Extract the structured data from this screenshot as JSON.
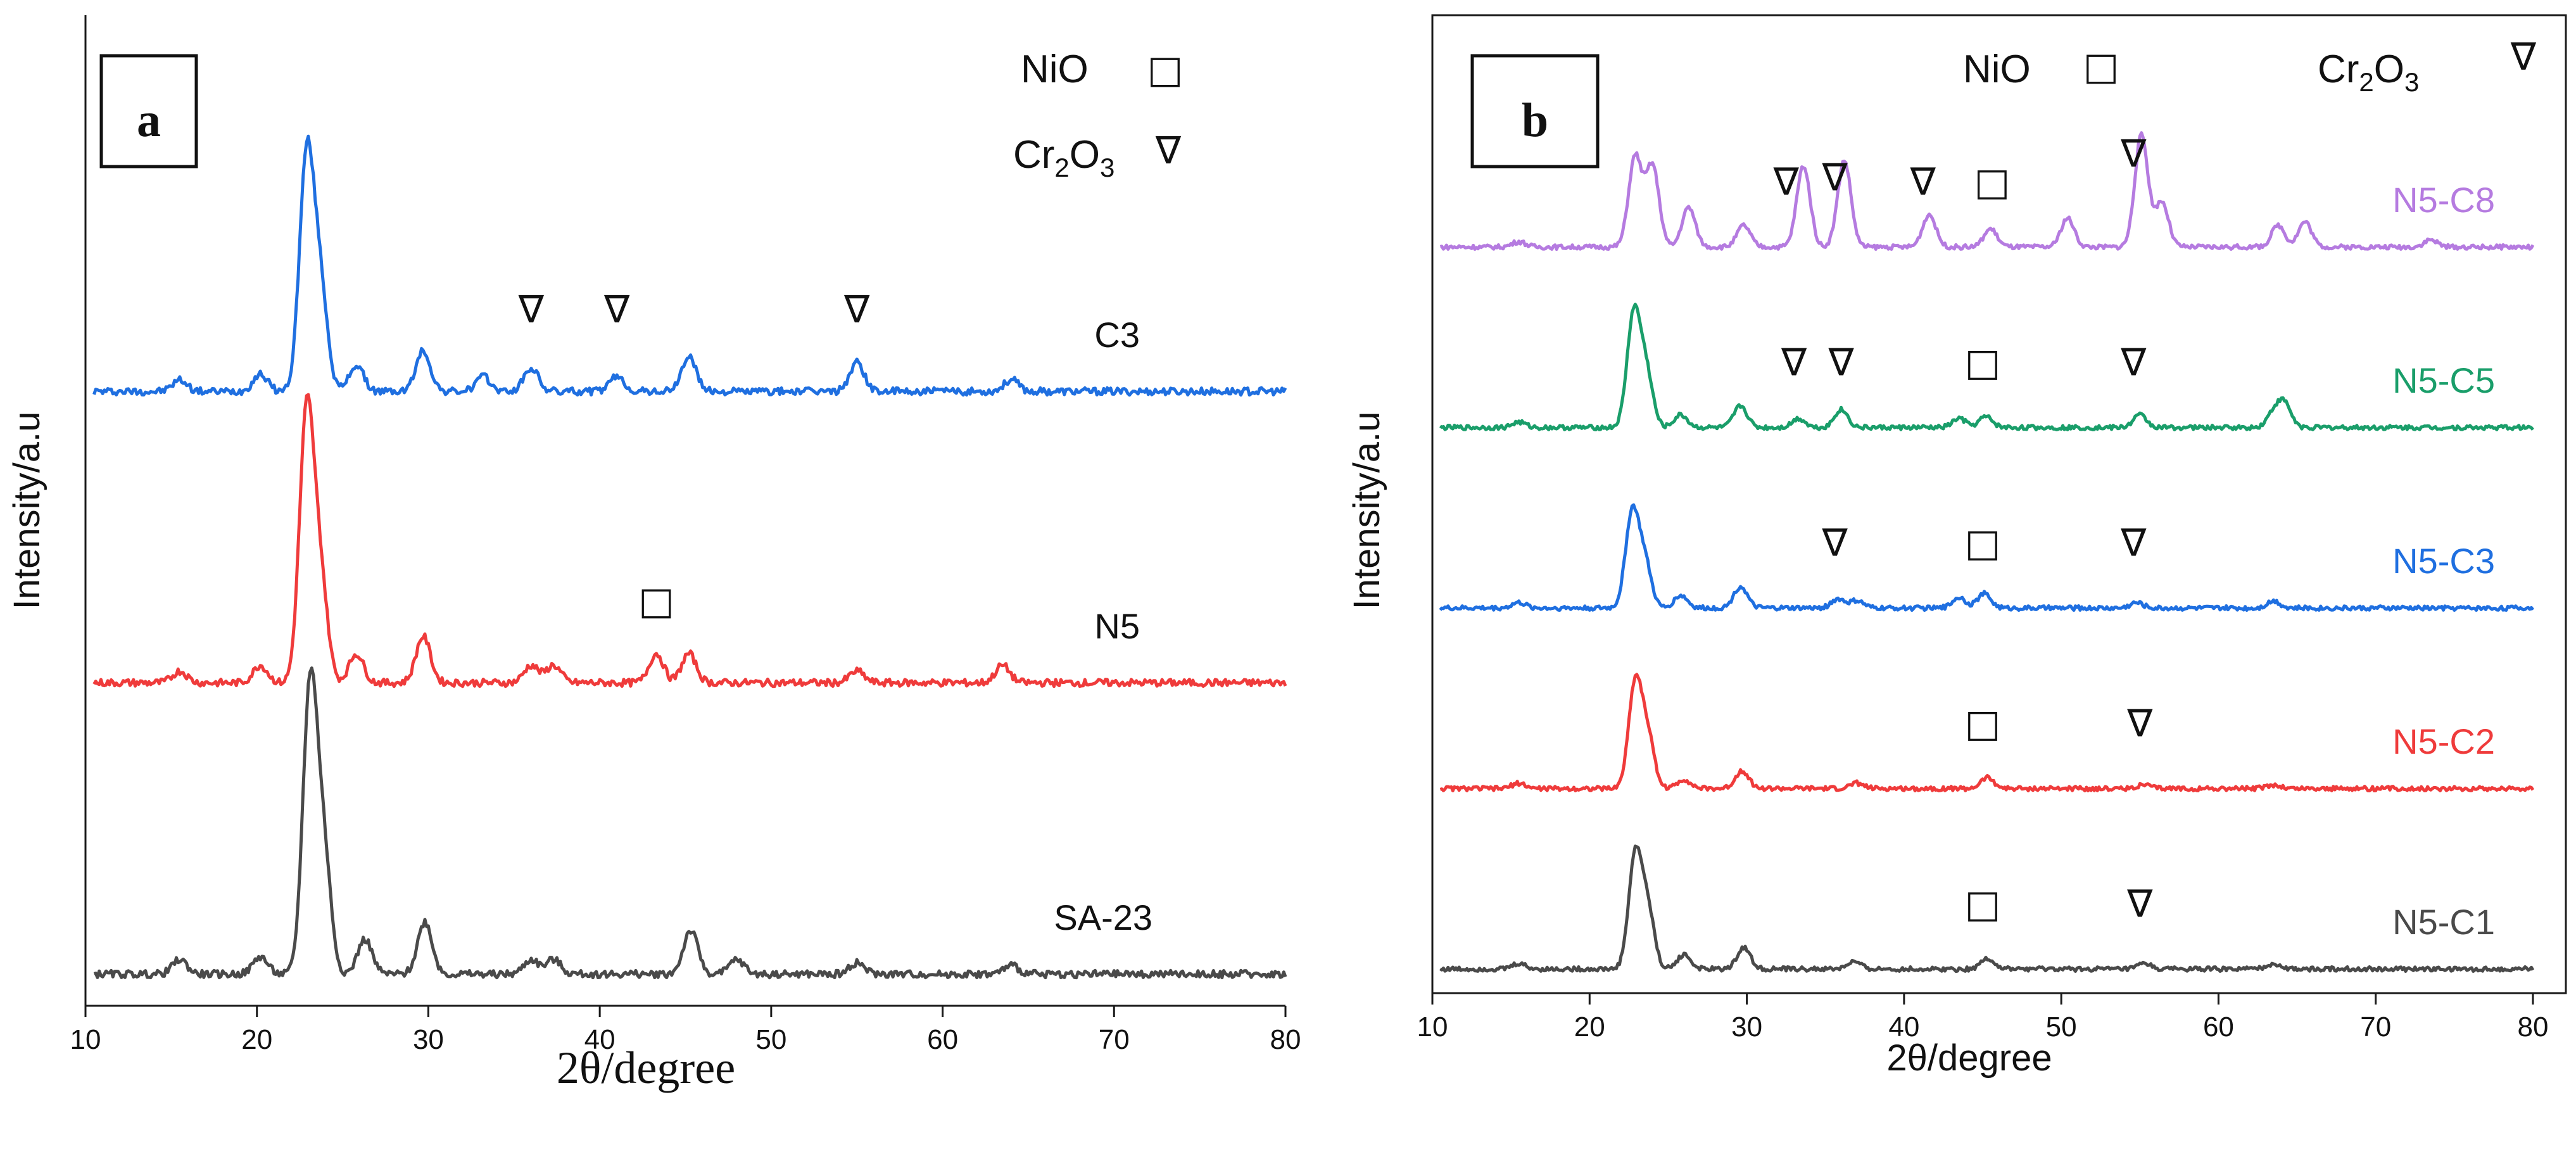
{
  "chart_data": [
    {
      "type": "line",
      "panel_label": "a",
      "xlabel": "2θ/degree",
      "ylabel": "Intensity/a.u",
      "xlim": [
        10,
        80
      ],
      "x_ticks": [
        "10",
        "20",
        "30",
        "40",
        "50",
        "60",
        "70",
        "80"
      ],
      "legend": [
        {
          "name": "NiO",
          "symbol": "□"
        },
        {
          "name": "Cr",
          "sub1": "2",
          "mid": "O",
          "sub2": "3",
          "symbol": "∇"
        }
      ],
      "series": [
        {
          "name": "C3",
          "color": "#1f6fe0",
          "offset": 2.0,
          "peaks": [
            [
              15.5,
              0.04
            ],
            [
              20.2,
              0.06
            ],
            [
              22.9,
              0.8
            ],
            [
              23.7,
              0.35
            ],
            [
              25.8,
              0.09
            ],
            [
              29.7,
              0.14
            ],
            [
              33.2,
              0.05
            ],
            [
              36.0,
              0.08
            ],
            [
              41.0,
              0.05
            ],
            [
              45.2,
              0.12
            ],
            [
              55.0,
              0.1
            ],
            [
              64.0,
              0.04
            ]
          ]
        },
        {
          "name": "N5",
          "color": "#ef3b3b",
          "offset": 1.0,
          "peaks": [
            [
              15.5,
              0.04
            ],
            [
              20.2,
              0.06
            ],
            [
              22.9,
              0.92
            ],
            [
              23.7,
              0.35
            ],
            [
              25.8,
              0.1
            ],
            [
              29.7,
              0.16
            ],
            [
              36.0,
              0.06
            ],
            [
              37.3,
              0.06
            ],
            [
              43.3,
              0.1
            ],
            [
              45.2,
              0.1
            ],
            [
              55.0,
              0.04
            ],
            [
              63.5,
              0.06
            ]
          ]
        },
        {
          "name": "SA-23",
          "color": "#4a4a4a",
          "offset": 0.0,
          "peaks": [
            [
              15.5,
              0.05
            ],
            [
              20.2,
              0.06
            ],
            [
              23.1,
              0.98
            ],
            [
              23.9,
              0.4
            ],
            [
              26.3,
              0.12
            ],
            [
              29.8,
              0.18
            ],
            [
              36.0,
              0.05
            ],
            [
              37.3,
              0.05
            ],
            [
              45.3,
              0.15
            ],
            [
              48.0,
              0.05
            ],
            [
              55.0,
              0.04
            ],
            [
              64.0,
              0.03
            ]
          ]
        }
      ],
      "markers": [
        {
          "series": "C3",
          "x": 36.0,
          "symbol": "∇"
        },
        {
          "series": "C3",
          "x": 41.0,
          "symbol": "∇"
        },
        {
          "series": "C3",
          "x": 55.0,
          "symbol": "∇"
        },
        {
          "series": "N5",
          "x": 43.3,
          "symbol": "□"
        }
      ]
    },
    {
      "type": "line",
      "panel_label": "b",
      "xlabel": "2θ/degree",
      "ylabel": "Intensity/a.u",
      "xlim": [
        10,
        80
      ],
      "x_ticks": [
        "10",
        "20",
        "30",
        "40",
        "50",
        "60",
        "70",
        "80"
      ],
      "legend": [
        {
          "name": "NiO",
          "symbol": "□"
        },
        {
          "name": "Cr",
          "sub1": "2",
          "mid": "O",
          "sub2": "3",
          "symbol": "∇"
        }
      ],
      "series": [
        {
          "name": "N5-C8",
          "color": "#b57be0",
          "offset": 4.0,
          "peaks": [
            [
              15.5,
              0.03
            ],
            [
              22.9,
              0.5
            ],
            [
              24.0,
              0.45
            ],
            [
              26.3,
              0.22
            ],
            [
              29.8,
              0.12
            ],
            [
              33.6,
              0.45
            ],
            [
              36.2,
              0.48
            ],
            [
              41.6,
              0.18
            ],
            [
              45.5,
              0.1
            ],
            [
              50.4,
              0.16
            ],
            [
              55.1,
              0.62
            ],
            [
              56.4,
              0.25
            ],
            [
              63.8,
              0.12
            ],
            [
              65.5,
              0.14
            ],
            [
              73.5,
              0.04
            ]
          ]
        },
        {
          "name": "N5-C5",
          "color": "#1a9e6a",
          "offset": 3.0,
          "peaks": [
            [
              15.5,
              0.03
            ],
            [
              22.8,
              0.62
            ],
            [
              23.6,
              0.3
            ],
            [
              25.8,
              0.07
            ],
            [
              29.6,
              0.12
            ],
            [
              33.3,
              0.05
            ],
            [
              36.0,
              0.1
            ],
            [
              43.5,
              0.05
            ],
            [
              45.2,
              0.06
            ],
            [
              55.0,
              0.07
            ],
            [
              63.5,
              0.08
            ],
            [
              64.2,
              0.13
            ]
          ]
        },
        {
          "name": "N5-C3",
          "color": "#1f6fe0",
          "offset": 2.0,
          "peaks": [
            [
              15.5,
              0.03
            ],
            [
              22.7,
              0.52
            ],
            [
              23.5,
              0.25
            ],
            [
              25.8,
              0.07
            ],
            [
              29.6,
              0.12
            ],
            [
              35.8,
              0.05
            ],
            [
              37.0,
              0.04
            ],
            [
              43.5,
              0.06
            ],
            [
              45.1,
              0.08
            ],
            [
              54.8,
              0.03
            ],
            [
              63.5,
              0.04
            ]
          ]
        },
        {
          "name": "N5-C2",
          "color": "#ef3b3b",
          "offset": 1.0,
          "peaks": [
            [
              15.5,
              0.03
            ],
            [
              22.9,
              0.58
            ],
            [
              23.7,
              0.28
            ],
            [
              26.0,
              0.05
            ],
            [
              29.7,
              0.1
            ],
            [
              37.0,
              0.03
            ],
            [
              45.3,
              0.06
            ],
            [
              55.2,
              0.02
            ],
            [
              63.5,
              0.02
            ]
          ]
        },
        {
          "name": "N5-C1",
          "color": "#4a4a4a",
          "offset": 0.0,
          "peaks": [
            [
              15.5,
              0.03
            ],
            [
              22.9,
              0.62
            ],
            [
              23.7,
              0.32
            ],
            [
              26.0,
              0.08
            ],
            [
              29.8,
              0.12
            ],
            [
              36.8,
              0.04
            ],
            [
              45.3,
              0.06
            ],
            [
              55.3,
              0.03
            ],
            [
              63.5,
              0.03
            ]
          ]
        }
      ],
      "markers": [
        {
          "series": "N5-C8",
          "x": 32.5,
          "symbol": "∇"
        },
        {
          "series": "N5-C8",
          "x": 35.6,
          "symbol": "∇"
        },
        {
          "series": "N5-C8",
          "x": 41.2,
          "symbol": "∇"
        },
        {
          "series": "N5-C8",
          "x": 45.6,
          "symbol": "□"
        },
        {
          "series": "N5-C8",
          "x": 54.6,
          "symbol": "∇"
        },
        {
          "series": "N5-C5",
          "x": 33.0,
          "symbol": "∇"
        },
        {
          "series": "N5-C5",
          "x": 36.0,
          "symbol": "∇"
        },
        {
          "series": "N5-C5",
          "x": 45.0,
          "symbol": "□"
        },
        {
          "series": "N5-C5",
          "x": 54.6,
          "symbol": "∇"
        },
        {
          "series": "N5-C3",
          "x": 35.6,
          "symbol": "∇"
        },
        {
          "series": "N5-C3",
          "x": 45.0,
          "symbol": "□"
        },
        {
          "series": "N5-C3",
          "x": 54.6,
          "symbol": "∇"
        },
        {
          "series": "N5-C2",
          "x": 45.0,
          "symbol": "□"
        },
        {
          "series": "N5-C2",
          "x": 55.0,
          "symbol": "∇"
        },
        {
          "series": "N5-C1",
          "x": 45.0,
          "symbol": "□"
        },
        {
          "series": "N5-C1",
          "x": 55.0,
          "symbol": "∇"
        }
      ]
    }
  ]
}
